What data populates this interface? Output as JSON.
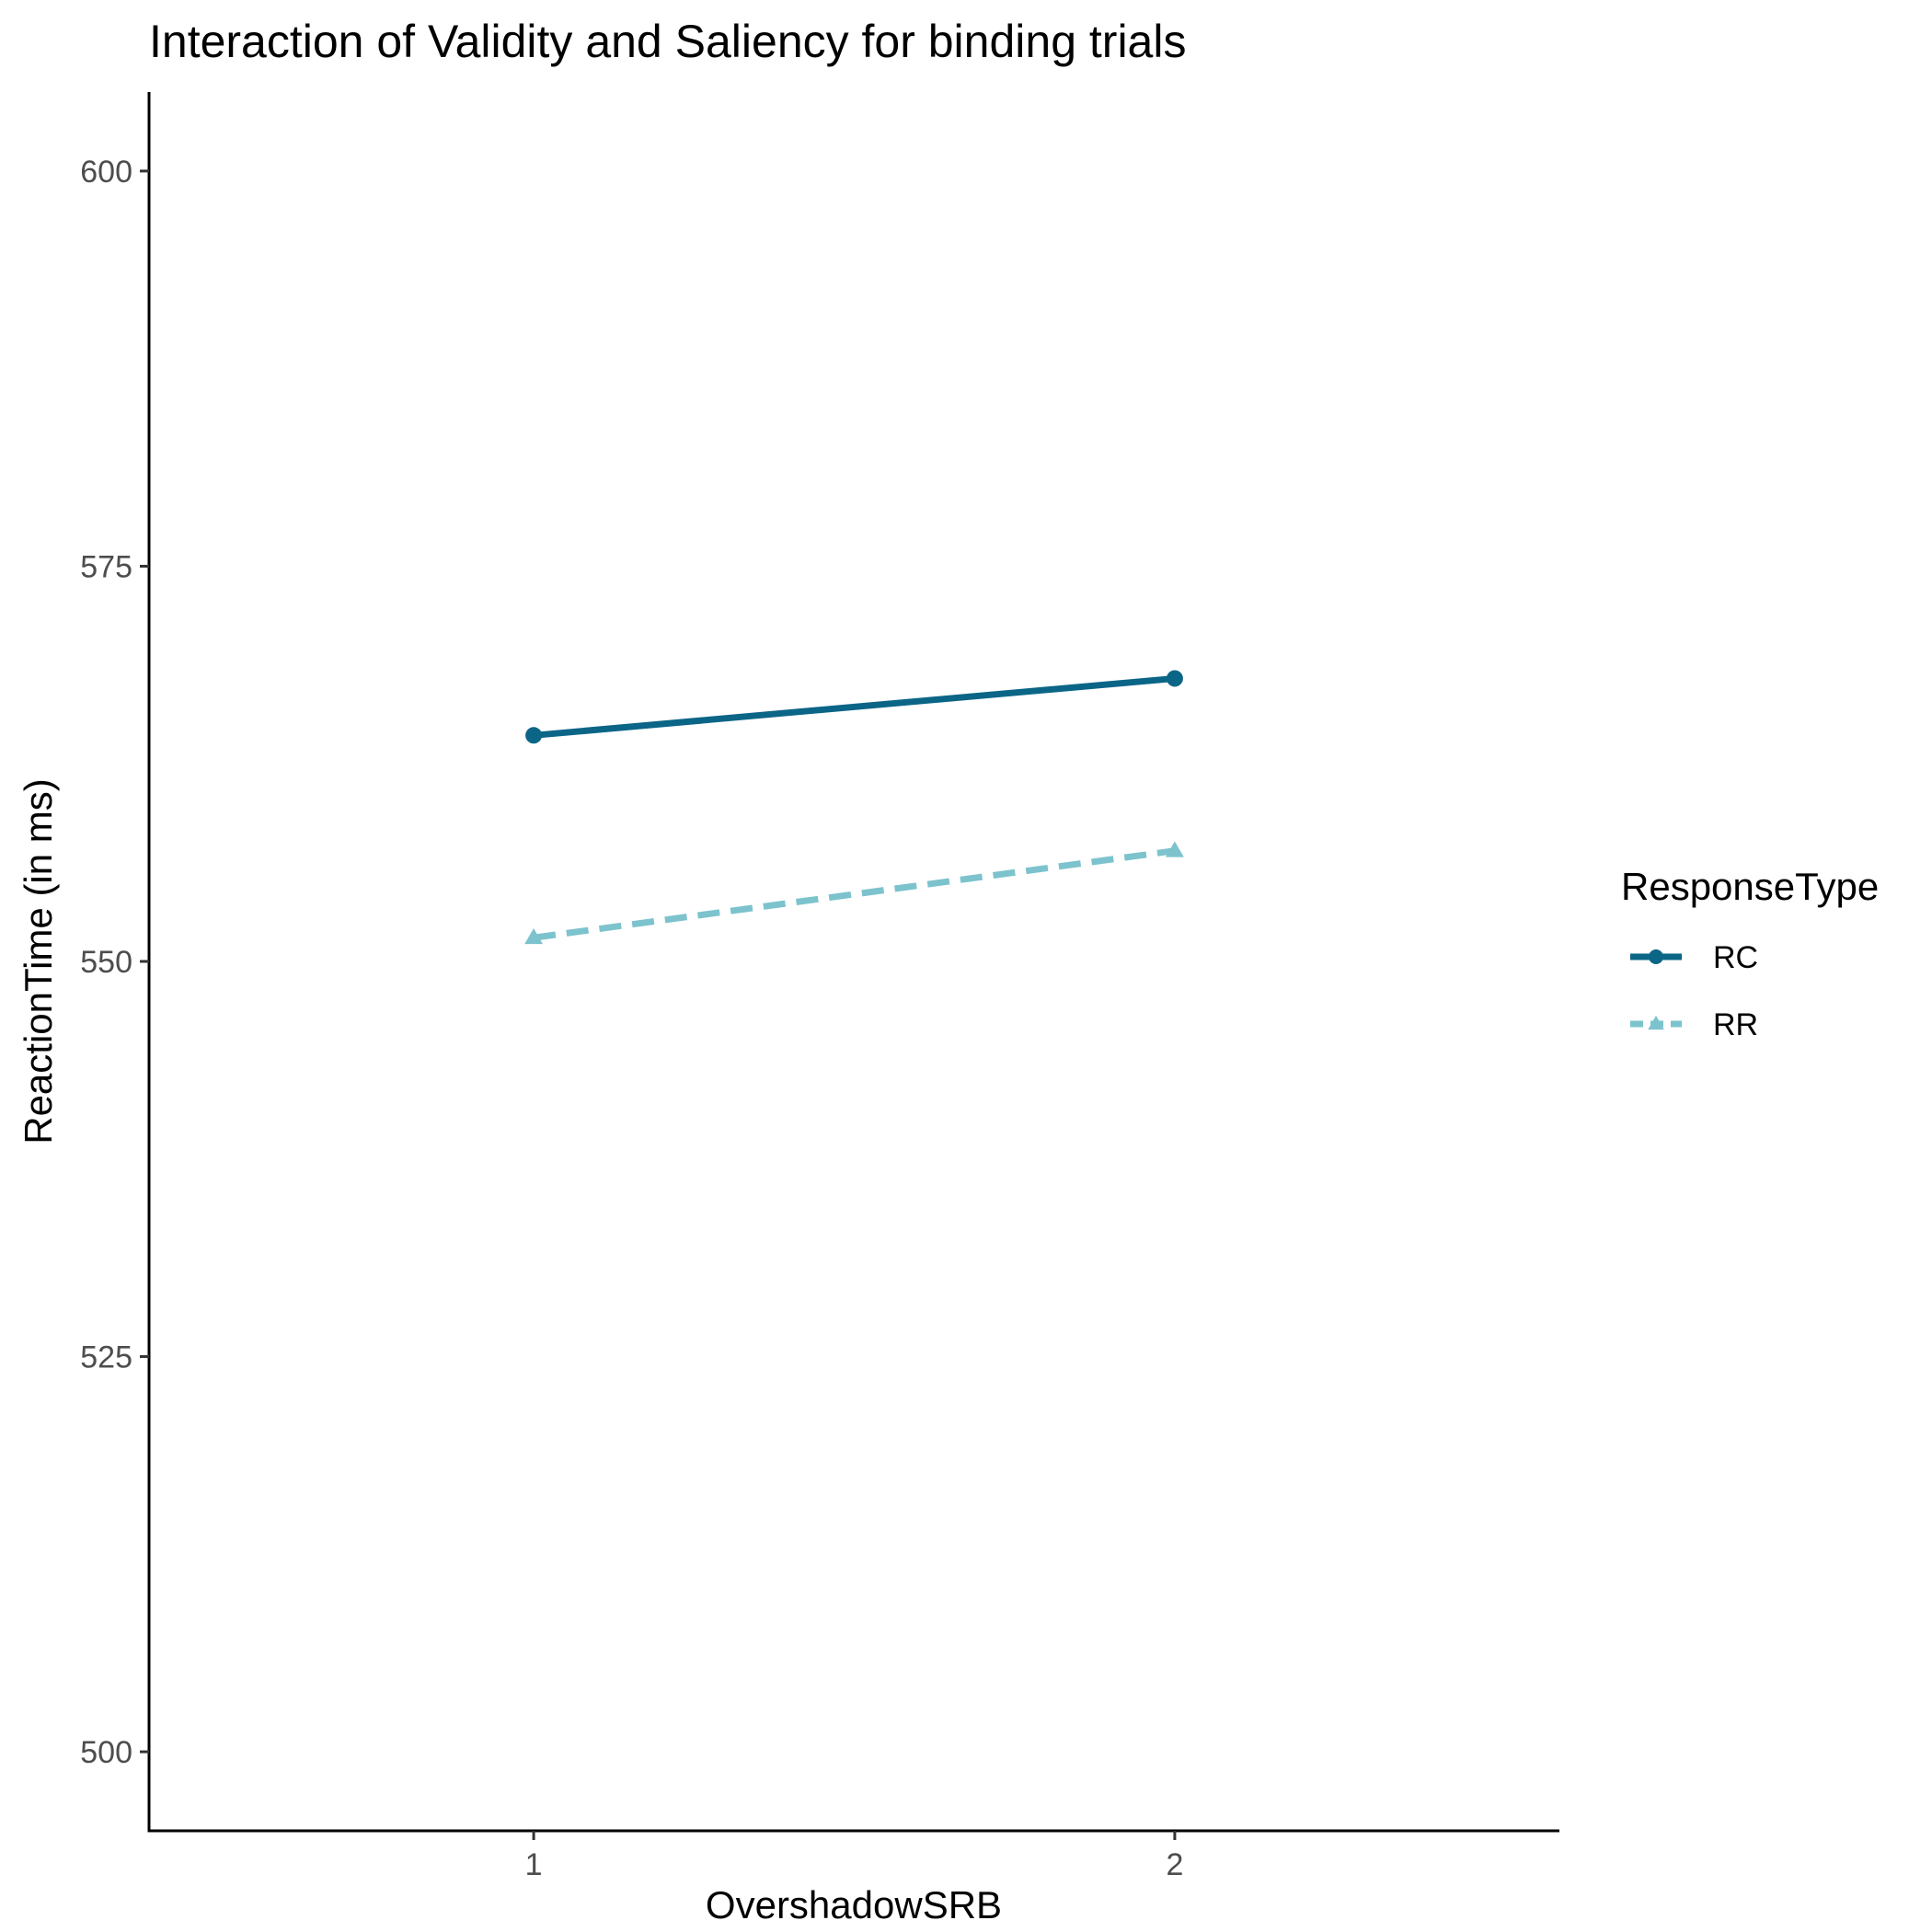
{
  "chart_data": {
    "type": "line",
    "title": "Interaction of Validity and Saliency for binding trials",
    "xlabel": "OvershadowSRB",
    "ylabel": "ReactionTime (in ms)",
    "categories": [
      "1",
      "2"
    ],
    "ylim": [
      495,
      605
    ],
    "yticks": [
      500,
      525,
      550,
      575,
      600
    ],
    "legend": {
      "title": "ResponseType",
      "position": "right"
    },
    "grid": false,
    "series": [
      {
        "name": "RC",
        "values": [
          564.3,
          567.9
        ],
        "color": "#0b6587",
        "dash": "solid",
        "marker": "circle"
      },
      {
        "name": "RR",
        "values": [
          551.5,
          557.0
        ],
        "color": "#7cc3cd",
        "dash": "dashed",
        "marker": "triangle"
      }
    ]
  }
}
